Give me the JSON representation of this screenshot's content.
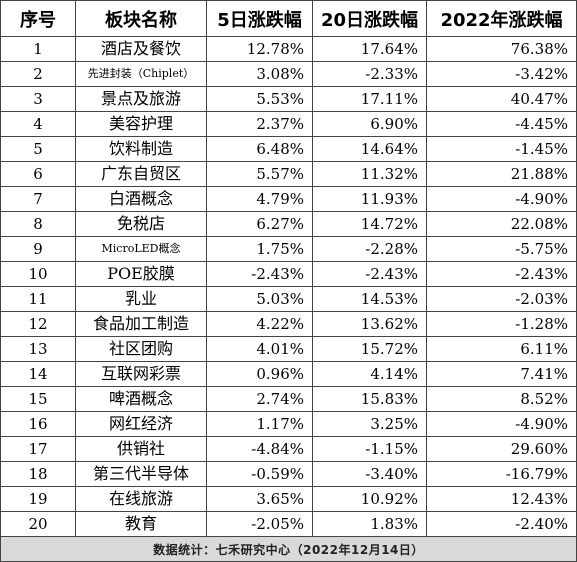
{
  "table": {
    "headers": [
      "序号",
      "板块名称",
      "5日涨跌幅",
      "20日涨跌幅",
      "2022年涨跌幅"
    ],
    "rows": [
      [
        "1",
        "酒店及餐饮",
        "12.78%",
        "17.64%",
        "76.38%"
      ],
      [
        "2",
        "先进封装（Chiplet）",
        "3.08%",
        "-2.33%",
        "-3.42%"
      ],
      [
        "3",
        "景点及旅游",
        "5.53%",
        "17.11%",
        "40.47%"
      ],
      [
        "4",
        "美容护理",
        "2.37%",
        "6.90%",
        "-4.45%"
      ],
      [
        "5",
        "饮料制造",
        "6.48%",
        "14.64%",
        "-1.45%"
      ],
      [
        "6",
        "广东自贸区",
        "5.57%",
        "11.32%",
        "21.88%"
      ],
      [
        "7",
        "白酒概念",
        "4.79%",
        "11.93%",
        "-4.90%"
      ],
      [
        "8",
        "免税店",
        "6.27%",
        "14.72%",
        "22.08%"
      ],
      [
        "9",
        "MicroLED概念",
        "1.75%",
        "-2.28%",
        "-5.75%"
      ],
      [
        "10",
        "POE胶膜",
        "-2.43%",
        "-2.43%",
        "-2.43%"
      ],
      [
        "11",
        "乳业",
        "5.03%",
        "14.53%",
        "-2.03%"
      ],
      [
        "12",
        "食品加工制造",
        "4.22%",
        "13.62%",
        "-1.28%"
      ],
      [
        "13",
        "社区团购",
        "4.01%",
        "15.72%",
        "6.11%"
      ],
      [
        "14",
        "互联网彩票",
        "0.96%",
        "4.14%",
        "7.41%"
      ],
      [
        "15",
        "啤酒概念",
        "2.74%",
        "15.83%",
        "8.52%"
      ],
      [
        "16",
        "网红经济",
        "1.17%",
        "3.25%",
        "-4.90%"
      ],
      [
        "17",
        "供销社",
        "-4.84%",
        "-1.15%",
        "29.60%"
      ],
      [
        "18",
        "第三代半导体",
        "-0.59%",
        "-3.40%",
        "-16.79%"
      ],
      [
        "19",
        "在线旅游",
        "3.65%",
        "10.92%",
        "12.43%"
      ],
      [
        "20",
        "教育",
        "-2.05%",
        "1.83%",
        "-2.40%"
      ]
    ]
  },
  "footer": {
    "source": "数据统计：七禾研究中心（2022年12月14日）"
  },
  "colors": {
    "border": "#444444",
    "footer_background": "#d9d9d9"
  }
}
